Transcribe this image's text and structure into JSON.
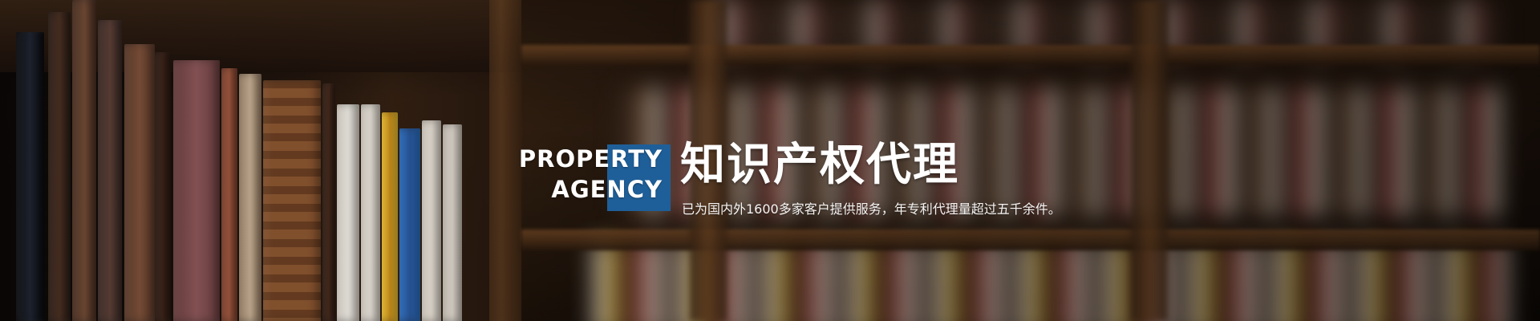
{
  "banner": {
    "en_title_line1": "PROPERTY",
    "en_title_line2": "AGENCY",
    "cn_title": "知识产权代理",
    "subtitle": "已为国内外1600多家客户提供服务，年专利代理量超过五千余件。",
    "accent_color": "#1f5f99"
  },
  "background": {
    "scene": "bookshelves-photo"
  }
}
